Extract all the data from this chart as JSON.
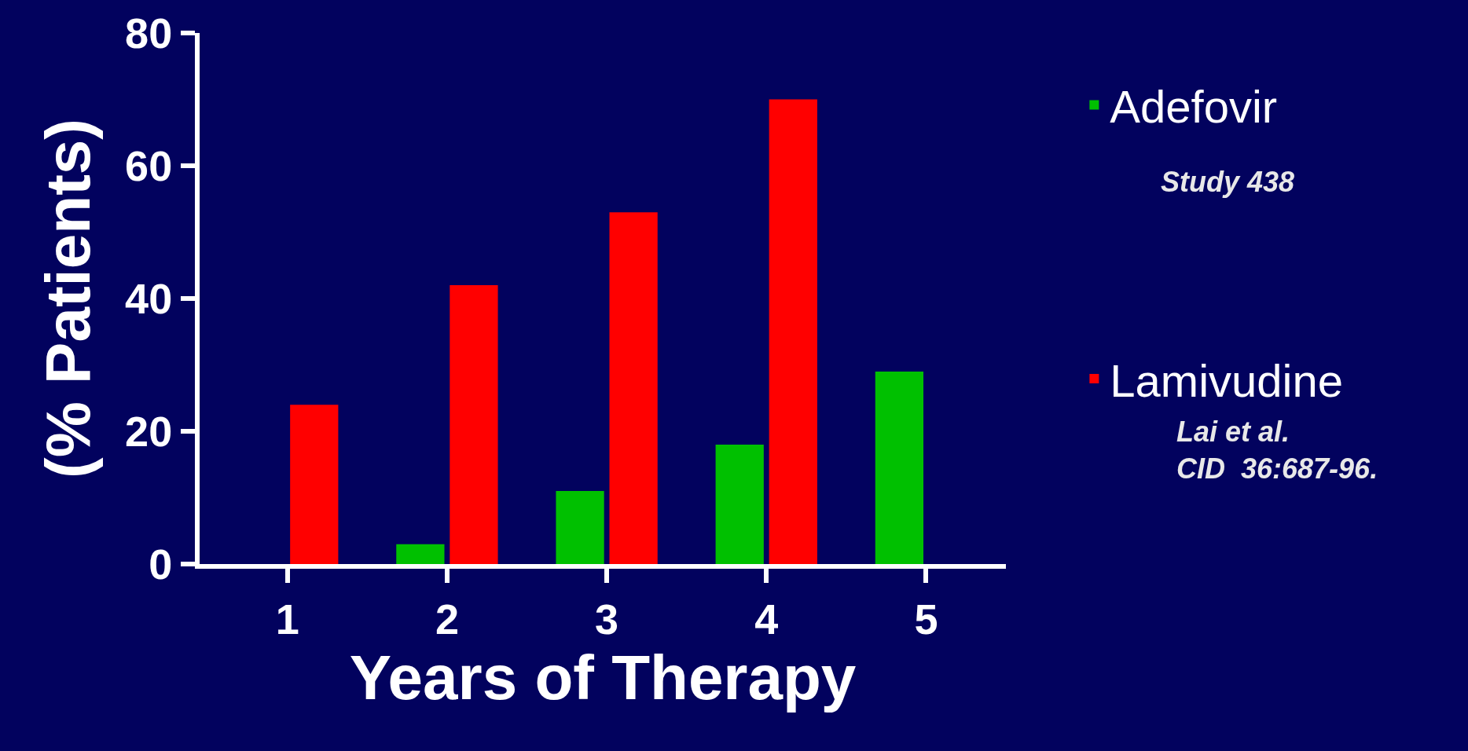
{
  "chart_data": {
    "type": "bar",
    "xlabel": "Years of Therapy",
    "ylabel": "(% Patients)",
    "categories": [
      "1",
      "2",
      "3",
      "4",
      "5"
    ],
    "series": [
      {
        "name": "Adefovir",
        "color": "#00c000",
        "values": [
          0,
          3,
          11,
          18,
          29
        ]
      },
      {
        "name": "Lamivudine",
        "color": "#ff0000",
        "values": [
          24,
          42,
          53,
          70,
          null
        ]
      }
    ],
    "ylim": [
      0,
      80
    ],
    "yticks": [
      0,
      20,
      40,
      60,
      80
    ],
    "grid": false,
    "legend": "right",
    "annotations": [
      "Study 438",
      "Lai et al.\nCID  36:687-96."
    ]
  }
}
